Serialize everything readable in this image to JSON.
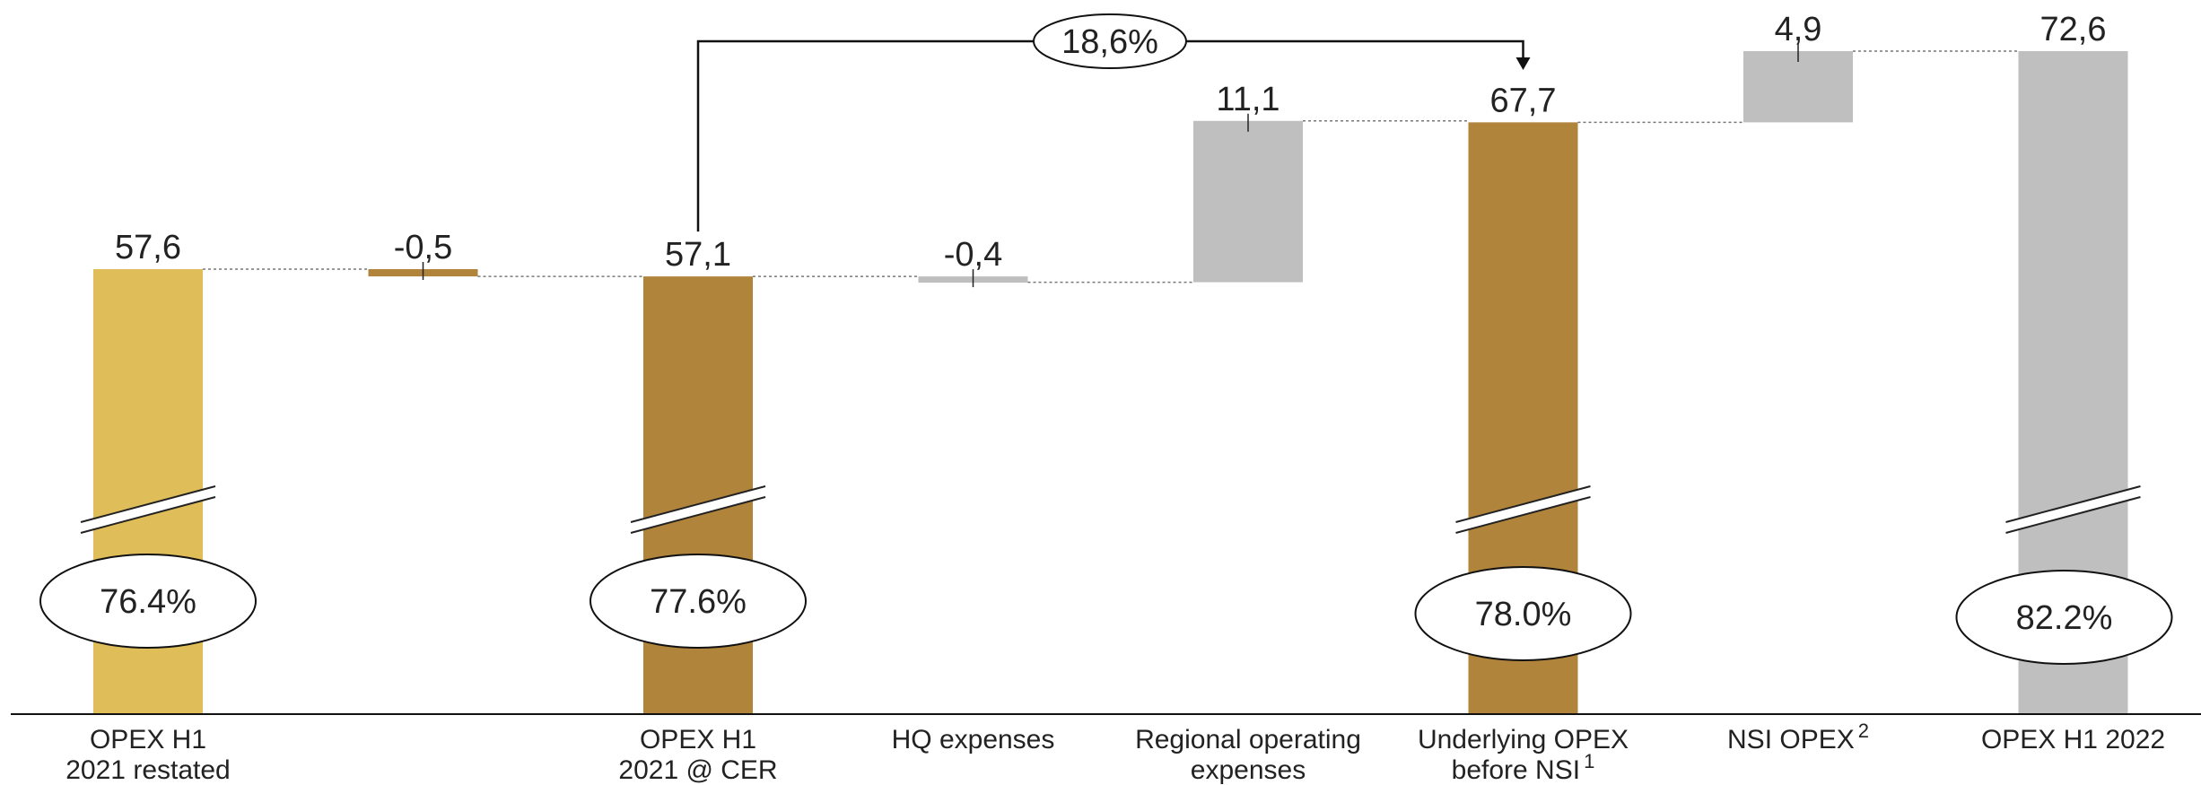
{
  "chart_data": {
    "type": "bar",
    "subtype": "waterfall",
    "axis_break": true,
    "categories": [
      {
        "label": "OPEX H1\n2021 restated",
        "sup": ""
      },
      {
        "label": "",
        "sup": ""
      },
      {
        "label": "OPEX H1\n2021 @ CER",
        "sup": ""
      },
      {
        "label": "HQ expenses",
        "sup": ""
      },
      {
        "label": "Regional operating\nexpenses",
        "sup": ""
      },
      {
        "label": "Underlying OPEX\nbefore NSI",
        "sup": "1"
      },
      {
        "label": "NSI OPEX",
        "sup": "2"
      },
      {
        "label": "OPEX H1 2022",
        "sup": ""
      }
    ],
    "bars": [
      {
        "kind": "total",
        "value": 57.6,
        "label": "57,6",
        "color": "#DFBE5A",
        "ratio": "76.4%"
      },
      {
        "kind": "delta",
        "value": -0.5,
        "label": "-0,5",
        "color": "#B0843A",
        "ratio": ""
      },
      {
        "kind": "total",
        "value": 57.1,
        "label": "57,1",
        "color": "#B0843A",
        "ratio": "77.6%"
      },
      {
        "kind": "delta",
        "value": -0.4,
        "label": "-0,4",
        "color": "#BFBFBF",
        "ratio": ""
      },
      {
        "kind": "delta",
        "value": 11.1,
        "label": "11,1",
        "color": "#BFBFBF",
        "ratio": ""
      },
      {
        "kind": "total",
        "value": 67.7,
        "label": "67,7",
        "color": "#B0843A",
        "ratio": "78.0%"
      },
      {
        "kind": "delta",
        "value": 4.9,
        "label": "4,9",
        "color": "#BFBFBF",
        "ratio": ""
      },
      {
        "kind": "total",
        "value": 72.6,
        "label": "72,6",
        "color": "#BFBFBF",
        "ratio": "82.2%"
      }
    ],
    "growth_annotation": {
      "from_index": 2,
      "to_index": 5,
      "label": "18,6%"
    }
  }
}
